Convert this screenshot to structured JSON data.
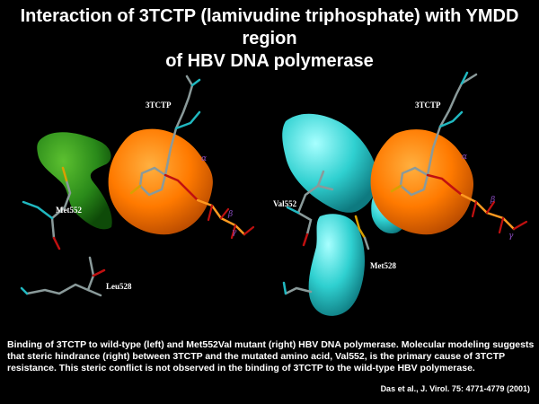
{
  "slide": {
    "title_line1": "Interaction of 3TCTP (lamivudine triphosphate) with YMDD region",
    "title_line2": "of HBV DNA polymerase",
    "caption": "Binding of 3TCTP to wild-type (left) and Met552Val mutant (right) HBV DNA polymerase. Molecular modeling suggests that steric hindrance (right) between 3TCTP and the mutated amino acid, Val552, is the primary cause of 3TCTP resistance. This steric conflict is not observed in the binding of 3TCTP to the wild-type HBV polymerase.",
    "citation": "Das et al., J. Virol. 75: 4771-4779 (2001)"
  },
  "left_model": {
    "ligand_label": "3TCTP",
    "residue_top": "Met552",
    "residue_bottom": "Leu528",
    "greek": [
      "α",
      "β",
      "γ"
    ]
  },
  "right_model": {
    "ligand_label": "3TCTP",
    "residue_top": "Val552",
    "residue_bottom": "Met528",
    "greek": [
      "α",
      "β",
      "γ"
    ]
  },
  "colors": {
    "background": "#000000",
    "ligand_surface": "#ff7a00",
    "wildtype_surface": "#2a8a1a",
    "mutant_surface": "#2fd0d0",
    "bond_gray": "#8a9a9a",
    "bond_red": "#c01010",
    "bond_cyan": "#20b8c0",
    "sulfur_yellow": "#d8a000",
    "greek_purple": "#8a4cc0"
  }
}
